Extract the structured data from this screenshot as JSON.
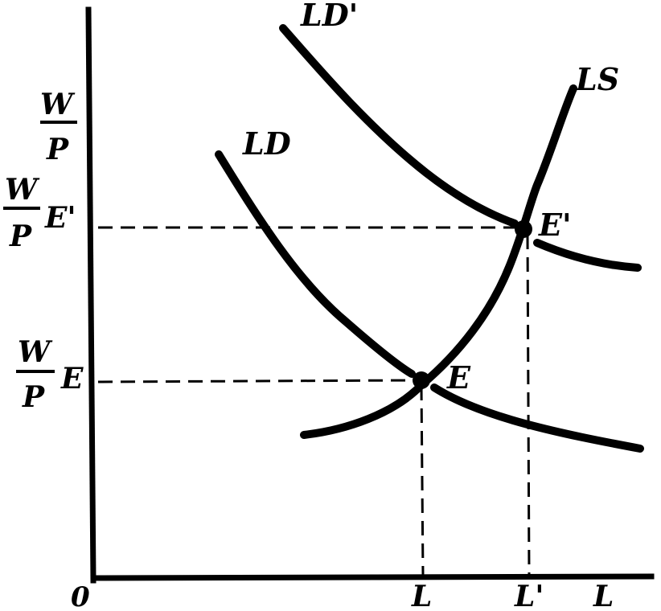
{
  "axes": {
    "origin_label": "0",
    "x_label": "L",
    "y_label": {
      "numerator": "W",
      "denominator": "P"
    }
  },
  "curves": {
    "ld": "LD",
    "ld_prime": "LD'",
    "ls": "LS"
  },
  "equilibria": {
    "e": {
      "point_label": "E",
      "wage_label": {
        "numerator": "W",
        "denominator": "P",
        "suffix": "E"
      },
      "employment_label": "L"
    },
    "e_prime": {
      "point_label": "E'",
      "wage_label": {
        "numerator": "W",
        "denominator": "P",
        "suffix": "E'"
      },
      "employment_label": "L'"
    }
  }
}
